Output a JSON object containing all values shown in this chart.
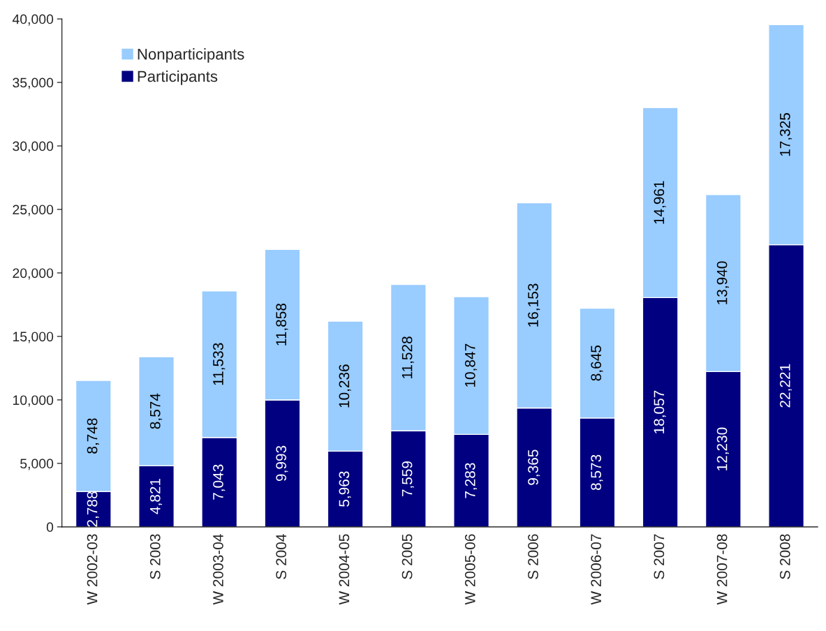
{
  "chart_data": {
    "type": "bar",
    "stacked": true,
    "categories": [
      "W 2002-03",
      "S 2003",
      "W 2003-04",
      "S 2004",
      "W 2004-05",
      "S 2005",
      "W 2005-06",
      "S 2006",
      "W 2006-07",
      "S 2007",
      "W 2007-08",
      "S 2008"
    ],
    "series": [
      {
        "name": "Participants",
        "color": "#000080",
        "values": [
          2788,
          4821,
          7043,
          9993,
          5963,
          7559,
          7283,
          9365,
          8573,
          18057,
          12230,
          22221
        ],
        "value_labels": [
          "2,788",
          "4,821",
          "7,043",
          "9,993",
          "5,963",
          "7,559",
          "7,283",
          "9,365",
          "8,573",
          "18,057",
          "12,230",
          "22,221"
        ]
      },
      {
        "name": "Nonparticipants",
        "color": "#99ccff",
        "values": [
          8748,
          8574,
          11533,
          11858,
          10236,
          11528,
          10847,
          16153,
          8645,
          14961,
          13940,
          17325
        ],
        "value_labels": [
          "8,748",
          "8,574",
          "11,533",
          "11,858",
          "10,236",
          "11,528",
          "10,847",
          "16,153",
          "8,645",
          "14,961",
          "13,940",
          "17,325"
        ]
      }
    ],
    "ylim": [
      0,
      40000
    ],
    "yticks": [
      {
        "value": 0,
        "label": "0"
      },
      {
        "value": 5000,
        "label": "5,000"
      },
      {
        "value": 10000,
        "label": "10,000"
      },
      {
        "value": 15000,
        "label": "15,000"
      },
      {
        "value": 20000,
        "label": "20,000"
      },
      {
        "value": 25000,
        "label": "25,000"
      },
      {
        "value": 30000,
        "label": "30,000"
      },
      {
        "value": 35000,
        "label": "35,000"
      },
      {
        "value": 40000,
        "label": "40,000"
      }
    ],
    "grid": false,
    "legend": "top left"
  }
}
